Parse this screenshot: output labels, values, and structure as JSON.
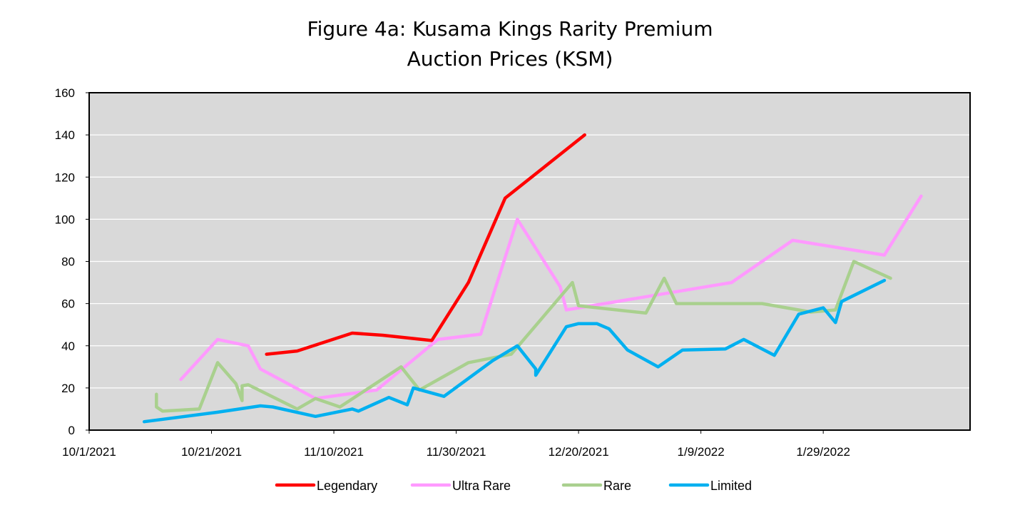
{
  "chart_data": {
    "type": "line",
    "title_line1": "Figure 4a: Kusama Kings Rarity Premium",
    "title_line2": "Auction Prices (KSM)",
    "xlabel": "",
    "ylabel": "",
    "ylim": [
      0,
      160
    ],
    "xlim": [
      "2021-10-01",
      "2022-02-22"
    ],
    "yticks": [
      "0",
      "20",
      "40",
      "60",
      "80",
      "100",
      "120",
      "140",
      "160"
    ],
    "xticks": [
      {
        "date": "2021-10-01",
        "label": "10/1/2021"
      },
      {
        "date": "2021-10-21",
        "label": "10/21/2021"
      },
      {
        "date": "2021-11-10",
        "label": "11/10/2021"
      },
      {
        "date": "2021-11-30",
        "label": "11/30/2021"
      },
      {
        "date": "2021-12-20",
        "label": "12/20/2021"
      },
      {
        "date": "2022-01-09",
        "label": "1/9/2022"
      },
      {
        "date": "2022-01-29",
        "label": "1/29/2022"
      }
    ],
    "grid": true,
    "legend_position": "bottom",
    "background": "#d9d9d9",
    "series": [
      {
        "name": "Legendary",
        "color": "#ff0000",
        "points": [
          [
            "2021-10-30",
            36
          ],
          [
            "2021-11-04",
            37.5
          ],
          [
            "2021-11-13",
            46
          ],
          [
            "2021-11-18",
            45
          ],
          [
            "2021-11-26",
            42.5
          ],
          [
            "2021-12-02",
            70
          ],
          [
            "2021-12-08",
            110
          ],
          [
            "2021-12-21",
            140
          ]
        ]
      },
      {
        "name": "Ultra Rare",
        "color": "#ff99ff",
        "points": [
          [
            "2021-10-16",
            24
          ],
          [
            "2021-10-22",
            43
          ],
          [
            "2021-10-27",
            40
          ],
          [
            "2021-10-29",
            29
          ],
          [
            "2021-11-07",
            15
          ],
          [
            "2021-11-17",
            19
          ],
          [
            "2021-11-27",
            43
          ],
          [
            "2021-12-04",
            45.5
          ],
          [
            "2021-12-10",
            100
          ],
          [
            "2021-12-17",
            68
          ],
          [
            "2021-12-18",
            57
          ],
          [
            "2022-01-14",
            70
          ],
          [
            "2022-01-24",
            90
          ],
          [
            "2022-02-08",
            83
          ],
          [
            "2022-02-14",
            111
          ]
        ]
      },
      {
        "name": "Rare",
        "color": "#a9d08e",
        "points": [
          [
            "2021-10-12",
            17
          ],
          [
            "2021-10-12",
            11
          ],
          [
            "2021-10-13",
            9
          ],
          [
            "2021-10-19",
            10
          ],
          [
            "2021-10-22",
            32
          ],
          [
            "2021-10-25",
            22
          ],
          [
            "2021-10-26",
            14
          ],
          [
            "2021-10-26",
            21
          ],
          [
            "2021-10-27",
            21.5
          ],
          [
            "2021-11-04",
            10
          ],
          [
            "2021-11-07",
            15
          ],
          [
            "2021-11-11",
            11
          ],
          [
            "2021-11-21",
            30
          ],
          [
            "2021-11-24",
            19
          ],
          [
            "2021-12-02",
            32
          ],
          [
            "2021-12-09",
            36
          ],
          [
            "2021-12-19",
            70
          ],
          [
            "2021-12-20",
            59
          ],
          [
            "2021-12-31",
            55.5
          ],
          [
            "2022-01-03",
            72
          ],
          [
            "2022-01-05",
            60
          ],
          [
            "2022-01-19",
            60
          ],
          [
            "2022-01-27",
            56
          ],
          [
            "2022-01-31",
            57
          ],
          [
            "2022-02-03",
            80
          ],
          [
            "2022-02-09",
            72
          ]
        ]
      },
      {
        "name": "Limited",
        "color": "#00b0f0",
        "points": [
          [
            "2021-10-10",
            4
          ],
          [
            "2021-10-22",
            8.5
          ],
          [
            "2021-10-29",
            11.5
          ],
          [
            "2021-10-31",
            11
          ],
          [
            "2021-11-07",
            6.5
          ],
          [
            "2021-11-13",
            10
          ],
          [
            "2021-11-14",
            9
          ],
          [
            "2021-11-19",
            15.5
          ],
          [
            "2021-11-22",
            12
          ],
          [
            "2021-11-23",
            20
          ],
          [
            "2021-11-28",
            16
          ],
          [
            "2021-12-06",
            33
          ],
          [
            "2021-12-10",
            40
          ],
          [
            "2021-12-13",
            29
          ],
          [
            "2021-12-13",
            26
          ],
          [
            "2021-12-18",
            49
          ],
          [
            "2021-12-20",
            50.5
          ],
          [
            "2021-12-23",
            50.5
          ],
          [
            "2021-12-25",
            48
          ],
          [
            "2021-12-28",
            38
          ],
          [
            "2022-01-02",
            30
          ],
          [
            "2022-01-06",
            38
          ],
          [
            "2022-01-13",
            38.5
          ],
          [
            "2022-01-16",
            43
          ],
          [
            "2022-01-21",
            35.5
          ],
          [
            "2022-01-25",
            55
          ],
          [
            "2022-01-29",
            58
          ],
          [
            "2022-01-31",
            51
          ],
          [
            "2022-02-01",
            61
          ],
          [
            "2022-02-08",
            71
          ]
        ]
      }
    ]
  }
}
